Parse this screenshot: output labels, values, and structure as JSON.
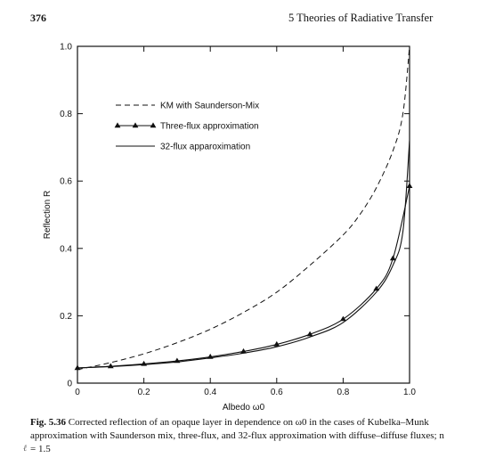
{
  "header": {
    "page_number": "376",
    "running_head": "5   Theories of Radiative Transfer"
  },
  "chart_data": {
    "type": "line",
    "title": "",
    "xlabel": "Albedo ω0",
    "ylabel": "Reflection R",
    "xlim": [
      0,
      1.0
    ],
    "ylim": [
      0,
      1.0
    ],
    "x_ticks": [
      "0",
      "0.2",
      "0.4",
      "0.6",
      "0.8",
      "1.0"
    ],
    "y_ticks": [
      "0",
      "0.2",
      "0.4",
      "0.6",
      "0.8",
      "1.0"
    ],
    "grid": false,
    "legend_position": "top-left",
    "series": [
      {
        "name": "KM with Saunderson-Mix",
        "style": "dashed",
        "x": [
          0,
          0.1,
          0.2,
          0.3,
          0.4,
          0.5,
          0.6,
          0.7,
          0.8,
          0.85,
          0.9,
          0.95,
          0.98,
          1.0
        ],
        "y": [
          0.04,
          0.061,
          0.087,
          0.12,
          0.16,
          0.21,
          0.27,
          0.35,
          0.44,
          0.5,
          0.58,
          0.69,
          0.8,
          1.0
        ]
      },
      {
        "name": "Three-flux approximation",
        "style": "solid-triangles",
        "x": [
          0,
          0.1,
          0.2,
          0.3,
          0.4,
          0.5,
          0.6,
          0.7,
          0.8,
          0.9,
          0.95,
          1.0
        ],
        "y": [
          0.045,
          0.05,
          0.057,
          0.066,
          0.078,
          0.094,
          0.115,
          0.145,
          0.19,
          0.28,
          0.37,
          0.585
        ]
      },
      {
        "name": "32-flux apparoximation",
        "style": "solid",
        "x": [
          0,
          0.1,
          0.2,
          0.3,
          0.4,
          0.5,
          0.6,
          0.7,
          0.8,
          0.9,
          0.95,
          0.98,
          1.0
        ],
        "y": [
          0.045,
          0.049,
          0.055,
          0.063,
          0.075,
          0.089,
          0.108,
          0.137,
          0.18,
          0.27,
          0.35,
          0.45,
          0.72
        ]
      }
    ]
  },
  "caption": {
    "label": "Fig. 5.36",
    "text": "Corrected reflection of an opaque layer in dependence on ω0 in the cases of Kubelka–Munk approximation with Saunderson mix, three-flux, and 32-flux approximation with diffuse–diffuse fluxes; n = 1.5"
  },
  "margin_note": "ℓ",
  "colors": {
    "line": "#111111",
    "axis": "#111111",
    "background": "#ffffff"
  }
}
